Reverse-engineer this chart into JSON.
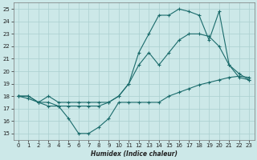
{
  "xlabel": "Humidex (Indice chaleur)",
  "xlim": [
    -0.5,
    23.5
  ],
  "ylim": [
    14.5,
    25.5
  ],
  "yticks": [
    15,
    16,
    17,
    18,
    19,
    20,
    21,
    22,
    23,
    24,
    25
  ],
  "xticks": [
    0,
    1,
    2,
    3,
    4,
    5,
    6,
    7,
    8,
    9,
    10,
    11,
    12,
    13,
    14,
    15,
    16,
    17,
    18,
    19,
    20,
    21,
    22,
    23
  ],
  "background_color": "#cce8e8",
  "grid_color": "#aacfcf",
  "line_color": "#1a6b6b",
  "line1_x": [
    0,
    1,
    2,
    3,
    4,
    5,
    6,
    7,
    8,
    9,
    10,
    11,
    12,
    13,
    14,
    15,
    16,
    17,
    18,
    19,
    20,
    21,
    22,
    23
  ],
  "line1_y": [
    18.0,
    17.8,
    17.5,
    17.2,
    17.2,
    16.2,
    15.0,
    15.0,
    15.5,
    16.2,
    17.5,
    17.5,
    17.5,
    17.5,
    17.5,
    18.0,
    18.3,
    18.6,
    18.9,
    19.1,
    19.3,
    19.5,
    19.6,
    19.5
  ],
  "line2_x": [
    0,
    1,
    2,
    3,
    4,
    5,
    6,
    7,
    8,
    9,
    10,
    11,
    12,
    13,
    14,
    15,
    16,
    17,
    18,
    19,
    20,
    21,
    22,
    23
  ],
  "line2_y": [
    18.0,
    18.0,
    17.5,
    17.5,
    17.2,
    17.2,
    17.2,
    17.2,
    17.2,
    17.5,
    18.0,
    19.0,
    20.5,
    21.5,
    20.5,
    21.5,
    22.5,
    23.0,
    23.0,
    22.8,
    22.0,
    20.5,
    19.8,
    19.3
  ],
  "line3_x": [
    0,
    1,
    2,
    3,
    4,
    5,
    6,
    7,
    8,
    9,
    10,
    11,
    12,
    13,
    14,
    15,
    16,
    17,
    18,
    19,
    20,
    21,
    22,
    23
  ],
  "line3_y": [
    18.0,
    18.0,
    17.5,
    18.0,
    17.5,
    17.5,
    17.5,
    17.5,
    17.5,
    17.5,
    18.0,
    19.0,
    21.5,
    23.0,
    24.5,
    24.5,
    25.0,
    24.8,
    24.5,
    22.5,
    24.8,
    20.5,
    19.5,
    19.3
  ]
}
